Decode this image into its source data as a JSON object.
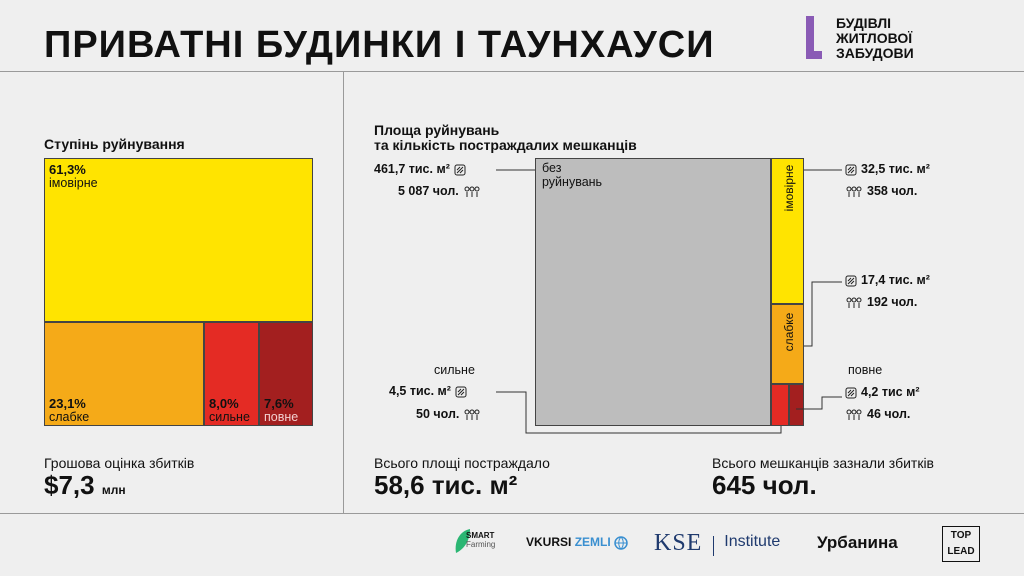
{
  "title": "ПРИВАТНІ БУДИНКИ І ТАУНХАУСИ",
  "brand": {
    "lines": [
      "БУДІВЛІ",
      "ЖИТЛОВОЇ",
      "ЗАБУДОВИ"
    ],
    "color": "#8a5bb5"
  },
  "left": {
    "heading": "Ступінь руйнування",
    "money_label": "Грошова оцінка збитків",
    "money_value": "$7,3",
    "money_unit": "млн"
  },
  "right": {
    "heading_line1": "Площа руйнувань",
    "heading_line2": "та кількість постраждалих мешканців",
    "area_label": "Всього площі постраждало",
    "area_value": "58,6 тис. м²",
    "people_label": "Всього мешканців зазнали збитків",
    "people_value": "645 чол."
  },
  "chart_data": [
    {
      "type": "treemap",
      "title": "Ступінь руйнування",
      "categories": [
        "імовірне",
        "слабке",
        "сильне",
        "повне"
      ],
      "values": [
        61.3,
        23.1,
        8.0,
        7.6
      ],
      "labels": [
        "61,3%",
        "23,1%",
        "8,0%",
        "7,6%"
      ],
      "colors": [
        "#ffe400",
        "#f5aa18",
        "#e42b24",
        "#a31f1f"
      ]
    },
    {
      "type": "treemap",
      "title": "Площа руйнувань та кількість постраждалих мешканців",
      "categories": [
        "без руйнувань",
        "імовірне",
        "слабке",
        "сильне",
        "повне"
      ],
      "series": [
        {
          "name": "тис. м²",
          "values": [
            461.7,
            32.5,
            17.4,
            4.5,
            4.2
          ]
        },
        {
          "name": "чол.",
          "values": [
            5087,
            358,
            192,
            50,
            46
          ]
        }
      ],
      "labels": {
        "none_line1": "без",
        "none_line2": "руйнувань",
        "likely": "імовірне",
        "light": "слабке",
        "heavy": "сильне",
        "full": "повне"
      },
      "area_text": {
        "none": "461,7 тис. м²",
        "likely": "32,5 тис. м²",
        "light": "17,4 тис. м²",
        "heavy": "4,5 тис. м²",
        "full": "4,2 тис м²"
      },
      "people_text": {
        "none": "5 087 чол.",
        "likely": "358 чол.",
        "light": "192 чол.",
        "heavy": "50 чол.",
        "full": "46 чол."
      },
      "colors": [
        "#bdbdbd",
        "#ffe400",
        "#f5aa18",
        "#e42b24",
        "#a31f1f"
      ]
    }
  ],
  "partners": {
    "smart_line1": "SMART",
    "smart_line2": "Farming",
    "vkursi": "VKURSI",
    "zemli": "ZEMLI",
    "kse": "KSE",
    "institute": "Institute",
    "urbanyna": "Урбанина",
    "top": "TOP",
    "lead": "LEAD"
  }
}
